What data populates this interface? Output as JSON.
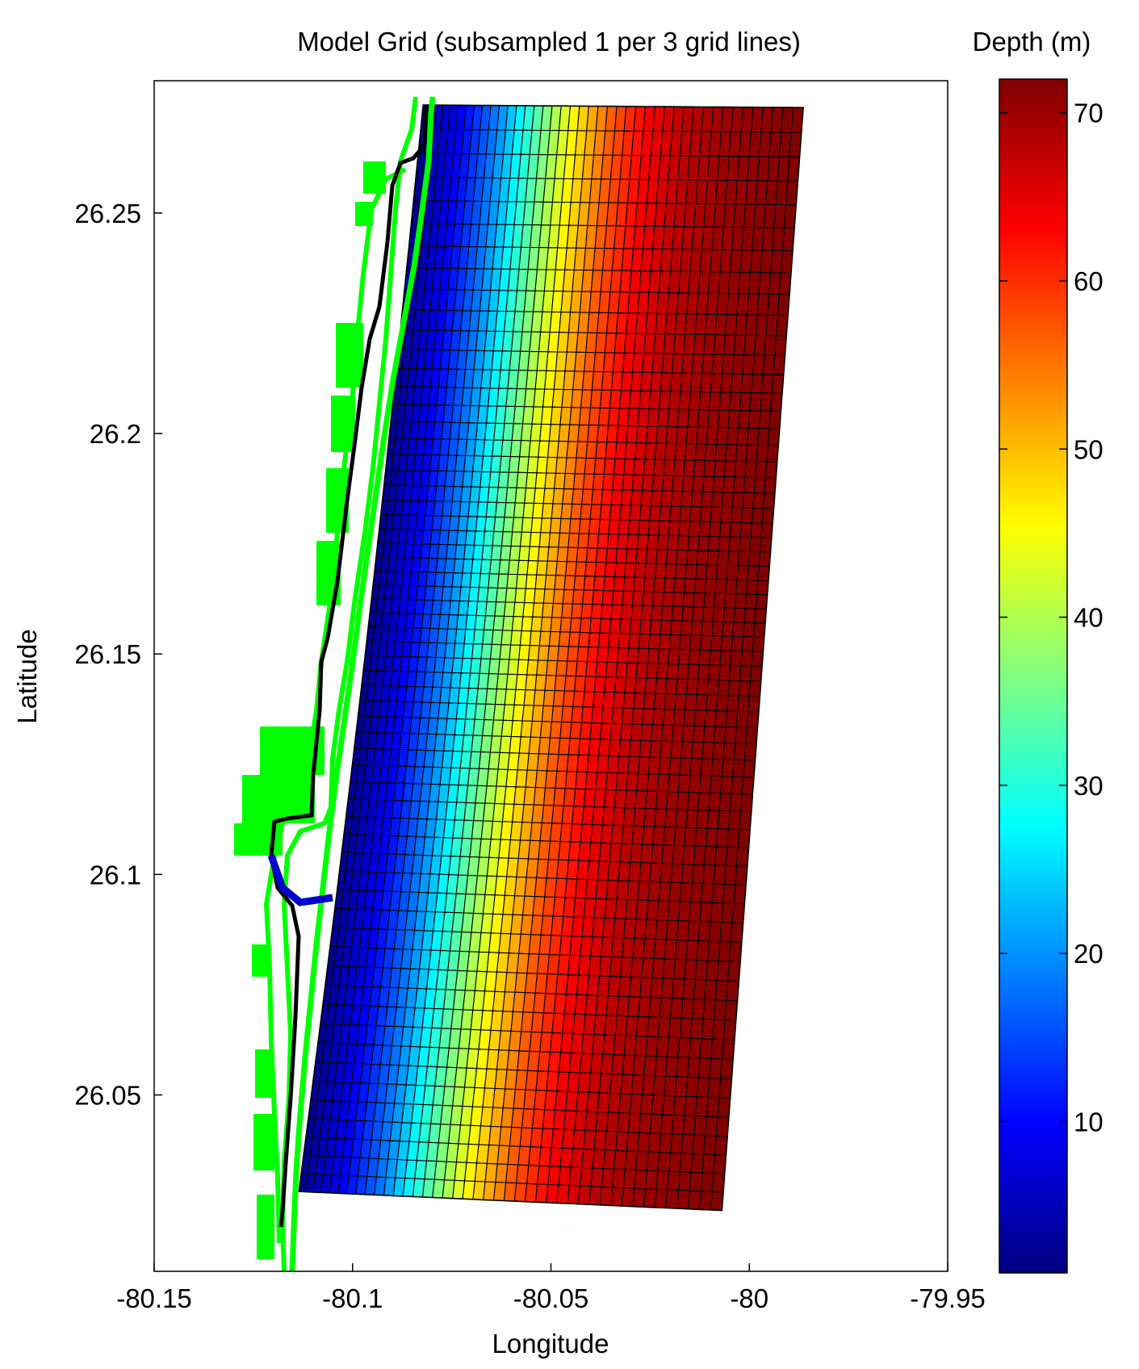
{
  "chart_data": {
    "type": "heatmap",
    "title": "Model Grid (subsampled 1 per 3 grid lines)",
    "xlabel": "Longitude",
    "ylabel": "Latitude",
    "colorbar_label": "Depth (m)",
    "xlim": [
      -80.15,
      -79.95
    ],
    "ylim": [
      26.01,
      26.28
    ],
    "xticks": [
      -80.15,
      -80.1,
      -80.05,
      -80,
      -79.95
    ],
    "xtick_labels": [
      "-80.15",
      "-80.1",
      "-80.05",
      "-80",
      "-79.95"
    ],
    "yticks": [
      26.05,
      26.1,
      26.15,
      26.2,
      26.25
    ],
    "ytick_labels": [
      "26.05",
      "26.1",
      "26.15",
      "26.2",
      "26.25"
    ],
    "clim": [
      1,
      72
    ],
    "cticks": [
      10,
      20,
      30,
      40,
      50,
      60,
      70
    ],
    "ctick_labels": [
      "10",
      "20",
      "30",
      "40",
      "50",
      "60",
      "70"
    ],
    "colormap": "jet",
    "grid_corners": {
      "near_shore_north": [
        -80.0822,
        26.2745
      ],
      "offshore_north": [
        -79.9864,
        26.2739
      ],
      "offshore_south": [
        -80.0069,
        26.0238
      ],
      "near_shore_south": [
        -80.1135,
        26.0281
      ]
    },
    "grid_columns": 42,
    "grid_rows": 61,
    "depth_profile": {
      "cross_shore_fraction": [
        0,
        0.1,
        0.2,
        0.3,
        0.4,
        0.5,
        0.6,
        0.7,
        0.8,
        0.9,
        1.0
      ],
      "depth_m": [
        2,
        9,
        19,
        33,
        46,
        57,
        64,
        68,
        70,
        71,
        72
      ]
    },
    "coastline_color": "#00ff00",
    "grid_line_color": "#000000"
  }
}
